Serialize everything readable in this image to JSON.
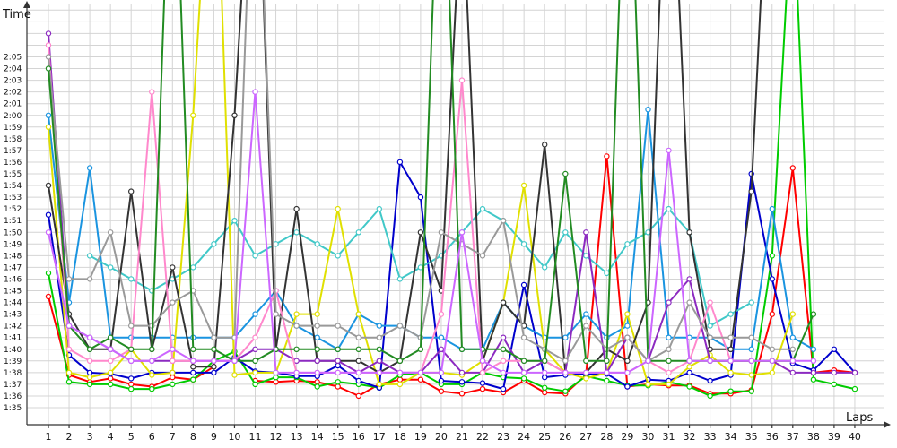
{
  "chart_data": {
    "type": "line",
    "ylabel": "Time",
    "xlabel": "Laps",
    "x": [
      1,
      2,
      3,
      4,
      5,
      6,
      7,
      8,
      9,
      10,
      11,
      12,
      13,
      14,
      15,
      16,
      17,
      18,
      19,
      20,
      21,
      22,
      23,
      24,
      25,
      26,
      27,
      28,
      29,
      30,
      31,
      32,
      33,
      34,
      35,
      36,
      37,
      38,
      39,
      40
    ],
    "yticks": [
      "1:35",
      "1:36",
      "1:37",
      "1:38",
      "1:39",
      "1:40",
      "1:41",
      "1:42",
      "1:43",
      "1:44",
      "1:45",
      "1:46",
      "1:47",
      "1:48",
      "1:49",
      "1:50",
      "1:51",
      "1:52",
      "1:53",
      "1:54",
      "1:55",
      "1:56",
      "1:57",
      "1:58",
      "1:59",
      "2:00",
      "2:01",
      "2:02",
      "2:03",
      "2:04",
      "2:05"
    ],
    "ylim_seconds": [
      94,
      127
    ],
    "grid": true,
    "series": [
      {
        "color": "#ff0000",
        "values": [
          104.5,
          97.8,
          97.2,
          97.5,
          97.0,
          96.8,
          97.6,
          97.4,
          98.5,
          null,
          97.3,
          97.2,
          97.3,
          97.2,
          96.8,
          96.0,
          97.0,
          97.4,
          97.4,
          96.4,
          96.2,
          96.6,
          96.3,
          97.3,
          96.3,
          96.2,
          97.8,
          116.5,
          96.8,
          97.0,
          96.9,
          96.9,
          96.2,
          96.2,
          96.5,
          103.0,
          115.5,
          98.0,
          98.2,
          98.0
        ]
      },
      {
        "color": "#00cc00",
        "values": [
          106.5,
          97.2,
          97.0,
          97.0,
          96.6,
          96.6,
          97.0,
          97.4,
          99.0,
          99.8,
          97.0,
          97.6,
          97.6,
          96.8,
          97.2,
          97.0,
          96.7,
          97.8,
          98.0,
          97.0,
          97.0,
          98.0,
          97.6,
          97.5,
          96.7,
          96.4,
          97.7,
          97.3,
          96.9,
          96.9,
          97.2,
          96.8,
          96.0,
          96.4,
          96.4,
          108.0,
          140.0,
          97.4,
          97.0,
          96.6
        ]
      },
      {
        "color": "#0000cc",
        "values": [
          111.5,
          99.5,
          98.0,
          97.9,
          97.5,
          98.0,
          98.0,
          98.0,
          98.0,
          99.3,
          98.1,
          98.0,
          97.7,
          97.7,
          98.6,
          97.3,
          96.7,
          116.0,
          113.0,
          97.3,
          97.2,
          97.1,
          96.6,
          105.5,
          97.6,
          97.8,
          97.9,
          97.9,
          96.8,
          97.4,
          97.3,
          98.0,
          97.3,
          97.8,
          115.0,
          106.0,
          98.8,
          98.2,
          100.0,
          98.0
        ]
      },
      {
        "color": "#1a94e0",
        "values": [
          120.0,
          104.0,
          115.5,
          101.0,
          101.0,
          101.0,
          101.0,
          101.0,
          101.0,
          101.0,
          103.0,
          105.0,
          102.0,
          101.0,
          100.0,
          103.0,
          102.0,
          102.0,
          101.0,
          101.0,
          100.0,
          100.0,
          104.0,
          102.0,
          101.0,
          101.0,
          103.0,
          101.0,
          102.0,
          120.5,
          101.0,
          101.0,
          101.0,
          100.0,
          100.0,
          112.0,
          101.0,
          100.0,
          null,
          null
        ]
      },
      {
        "color": "#40c8c8",
        "values": [
          null,
          null,
          108.0,
          107.0,
          106.0,
          105.0,
          106.0,
          107.0,
          109.0,
          111.0,
          108.0,
          109.0,
          110.0,
          109.0,
          108.0,
          110.0,
          112.0,
          106.0,
          107.0,
          108.0,
          110.0,
          112.0,
          111.0,
          109.0,
          107.0,
          110.0,
          108.0,
          106.5,
          109.0,
          110.0,
          112.0,
          110.0,
          102.0,
          103.0,
          104.0,
          null,
          null,
          null,
          null,
          null
        ]
      },
      {
        "color": "#e0e000",
        "values": [
          119.0,
          98.0,
          97.6,
          98.0,
          100.0,
          97.8,
          98.0,
          120.0,
          150.0,
          97.8,
          98.0,
          98.0,
          103.0,
          103.0,
          112.0,
          103.0,
          97.0,
          97.0,
          98.0,
          98.0,
          97.8,
          99.0,
          104.0,
          114.0,
          100.0,
          98.0,
          97.5,
          98.0,
          103.0,
          97.0,
          97.0,
          98.5,
          99.5,
          98.0,
          97.8,
          98.0,
          103.0,
          null,
          null,
          null
        ]
      },
      {
        "color": "#333333",
        "values": [
          114.0,
          103.0,
          100.0,
          100.0,
          113.5,
          100.0,
          107.0,
          98.5,
          98.5,
          120.0,
          150.0,
          100.0,
          112.0,
          99.0,
          99.0,
          99.0,
          98.0,
          99.0,
          110.0,
          105.0,
          140.0,
          99.0,
          104.0,
          102.0,
          117.5,
          98.0,
          98.0,
          100.0,
          99.0,
          104.0,
          150.0,
          110.0,
          100.0,
          100.0,
          113.5,
          150.0,
          null,
          null,
          null,
          null
        ]
      },
      {
        "color": "#8c2ac0",
        "values": [
          127.0,
          102.0,
          101.0,
          100.0,
          99.0,
          99.0,
          99.0,
          99.0,
          99.0,
          99.0,
          100.0,
          100.0,
          99.0,
          99.0,
          99.0,
          98.0,
          99.0,
          98.0,
          98.0,
          100.0,
          98.0,
          98.0,
          101.0,
          98.0,
          99.0,
          98.0,
          110.0,
          98.0,
          101.0,
          99.0,
          104.0,
          106.0,
          99.0,
          99.0,
          99.0,
          99.0,
          98.0,
          98.0,
          98.0,
          98.0
        ]
      },
      {
        "color": "#ff88cc",
        "values": [
          126.0,
          100.0,
          99.0,
          99.0,
          100.0,
          122.0,
          99.0,
          99.0,
          99.0,
          99.0,
          101.0,
          105.0,
          98.0,
          98.0,
          98.0,
          98.0,
          98.0,
          98.0,
          98.0,
          103.0,
          123.0,
          98.0,
          99.0,
          99.0,
          99.0,
          98.0,
          98.0,
          98.0,
          98.0,
          99.0,
          98.0,
          99.0,
          104.0,
          99.0,
          99.0,
          99.0,
          99.0,
          null,
          null,
          null
        ]
      },
      {
        "color": "#999999",
        "values": [
          125.0,
          106.0,
          106.0,
          110.0,
          102.0,
          102.0,
          104.0,
          105.0,
          101.0,
          101.0,
          150.0,
          103.0,
          102.0,
          102.0,
          102.0,
          101.0,
          101.0,
          102.0,
          101.0,
          110.0,
          109.0,
          108.0,
          111.0,
          101.0,
          100.0,
          99.0,
          102.0,
          100.0,
          101.0,
          99.0,
          100.0,
          104.0,
          101.0,
          101.0,
          101.0,
          100.0,
          100.0,
          null,
          null,
          null
        ]
      },
      {
        "color": "#228b22",
        "values": [
          124.0,
          102.0,
          100.0,
          101.0,
          100.0,
          100.0,
          150.0,
          100.0,
          100.0,
          99.0,
          99.0,
          100.0,
          100.0,
          100.0,
          100.0,
          100.0,
          100.0,
          99.0,
          100.0,
          150.0,
          100.0,
          100.0,
          100.0,
          99.0,
          99.0,
          115.0,
          99.0,
          99.0,
          150.0,
          99.0,
          99.0,
          99.0,
          99.0,
          99.0,
          99.0,
          99.0,
          99.0,
          103.0,
          null,
          null
        ]
      },
      {
        "color": "#cc66ff",
        "values": [
          110.0,
          102.0,
          101.0,
          100.0,
          99.0,
          99.0,
          100.0,
          99.0,
          99.0,
          99.0,
          122.0,
          98.0,
          98.0,
          98.0,
          98.0,
          98.0,
          98.0,
          98.0,
          98.0,
          98.0,
          110.0,
          99.0,
          98.0,
          98.0,
          98.0,
          98.0,
          98.0,
          98.0,
          98.0,
          99.0,
          117.0,
          99.0,
          99.0,
          99.0,
          99.0,
          99.0,
          99.0,
          99.0,
          null,
          null
        ]
      }
    ]
  }
}
